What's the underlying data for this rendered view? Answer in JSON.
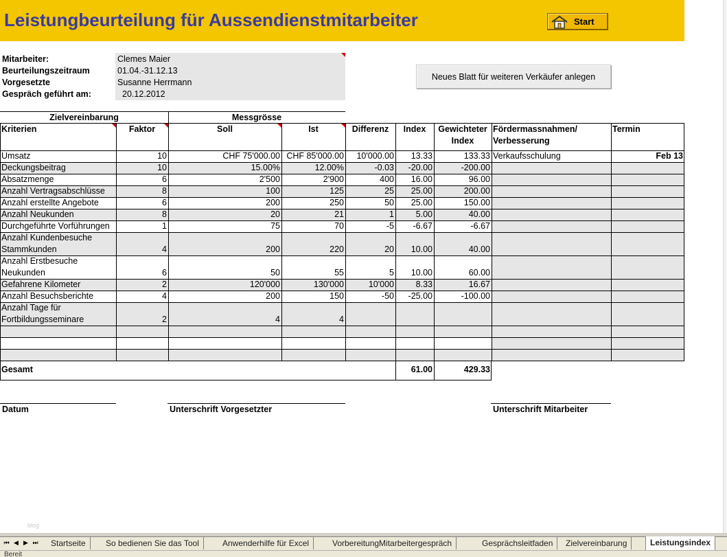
{
  "header": {
    "title": "Leistungbeurteilung für Aussendienstmitarbeiter",
    "start_button": "Start",
    "banner_color": "#f4c600",
    "title_color": "#3b3ba0"
  },
  "info": {
    "employee_label": "Mitarbeiter:",
    "employee_value": "Clemes Maier",
    "period_label": "Beurteilungszeitraum",
    "period_value": "01.04.-31.12.13",
    "supervisor_label": "Vorgesetzte",
    "supervisor_value": "Susanne Herrmann",
    "date_label": "Gespräch geführt am:",
    "date_value": "20.12.2012"
  },
  "new_sheet_button": "Neues Blatt für weiteren Verkäufer anlegen",
  "table": {
    "group_headers": {
      "zielvereinbarung": "Zielvereinbarung",
      "messgroesse": "Messgrösse"
    },
    "headers": {
      "kriterien": "Kriterien",
      "faktor": "Faktor",
      "soll": "Soll",
      "ist": "Ist",
      "differenz": "Differenz",
      "index": "Index",
      "gewichteter_1": "Gewichteter",
      "gewichteter_2": "Index",
      "foerder_1": "Fördermassnahmen/",
      "foerder_2": "Verbesserung",
      "termin": "Termin"
    },
    "rows": [
      {
        "k1": "Umsatz",
        "k2": "",
        "faktor": "10",
        "soll": "CHF 75'000.00",
        "ist": "CHF 85'000.00",
        "diff": "10'000.00",
        "index": "13.33",
        "gew": "133.33",
        "foerder": "Verkaufsschulung",
        "termin": "Feb 13"
      },
      {
        "k1": "Deckungsbeitrag",
        "k2": "",
        "faktor": "10",
        "soll": "15.00%",
        "ist": "12.00%",
        "diff": "-0.03",
        "index": "-20.00",
        "gew": "-200.00",
        "foerder": "",
        "termin": ""
      },
      {
        "k1": "Absatzmenge",
        "k2": "",
        "faktor": "6",
        "soll": "2'500",
        "ist": "2'900",
        "diff": "400",
        "index": "16.00",
        "gew": "96.00",
        "foerder": "",
        "termin": ""
      },
      {
        "k1": "Anzahl Vertragsabschlüsse",
        "k2": "",
        "faktor": "8",
        "soll": "100",
        "ist": "125",
        "diff": "25",
        "index": "25.00",
        "gew": "200.00",
        "foerder": "",
        "termin": ""
      },
      {
        "k1": "Anzahl erstellte Angebote",
        "k2": "",
        "faktor": "6",
        "soll": "200",
        "ist": "250",
        "diff": "50",
        "index": "25.00",
        "gew": "150.00",
        "foerder": "",
        "termin": ""
      },
      {
        "k1": "Anzahl Neukunden",
        "k2": "",
        "faktor": "8",
        "soll": "20",
        "ist": "21",
        "diff": "1",
        "index": "5.00",
        "gew": "40.00",
        "foerder": "",
        "termin": ""
      },
      {
        "k1": "Durchgeführte Vorführungen",
        "k2": "",
        "faktor": "1",
        "soll": "75",
        "ist": "70",
        "diff": "-5",
        "index": "-6.67",
        "gew": "-6.67",
        "foerder": "",
        "termin": ""
      },
      {
        "k1": "Anzahl Kundenbesuche",
        "k2": "Stammkunden",
        "faktor": "4",
        "soll": "200",
        "ist": "220",
        "diff": "20",
        "index": "10.00",
        "gew": "40.00",
        "foerder": "",
        "termin": ""
      },
      {
        "k1": "Anzahl Erstbesuche",
        "k2": "Neukunden",
        "faktor": "6",
        "soll": "50",
        "ist": "55",
        "diff": "5",
        "index": "10.00",
        "gew": "60.00",
        "foerder": "",
        "termin": ""
      },
      {
        "k1": "Gefahrene Kilometer",
        "k2": "",
        "faktor": "2",
        "soll": "120'000",
        "ist": "130'000",
        "diff": "10'000",
        "index": "8.33",
        "gew": "16.67",
        "foerder": "",
        "termin": ""
      },
      {
        "k1": "Anzahl Besuchsberichte",
        "k2": "",
        "faktor": "4",
        "soll": "200",
        "ist": "150",
        "diff": "-50",
        "index": "-25.00",
        "gew": "-100.00",
        "foerder": "",
        "termin": ""
      },
      {
        "k1": "Anzahl Tage für",
        "k2": "Fortbildungsseminare",
        "faktor": "2",
        "soll": "4",
        "ist": "4",
        "diff": "",
        "index": "",
        "gew": "",
        "foerder": "",
        "termin": ""
      },
      {
        "k1": "",
        "k2": "",
        "faktor": "",
        "soll": "",
        "ist": "",
        "diff": "",
        "index": "",
        "gew": "",
        "foerder": "",
        "termin": ""
      },
      {
        "k1": "",
        "k2": "",
        "faktor": "",
        "soll": "",
        "ist": "",
        "diff": "",
        "index": "",
        "gew": "",
        "foerder": "",
        "termin": ""
      },
      {
        "k1": "",
        "k2": "",
        "faktor": "",
        "soll": "",
        "ist": "",
        "diff": "",
        "index": "",
        "gew": "",
        "foerder": "",
        "termin": ""
      }
    ],
    "total_label": "Gesamt",
    "total_index": "61.00",
    "total_gew": "429.33"
  },
  "signatures": {
    "datum": "Datum",
    "vorgesetzter": "Unterschrift Vorgesetzter",
    "mitarbeiter": "Unterschrift Mitarbeiter"
  },
  "sheet_tabs": [
    {
      "label": "Startseite",
      "active": false
    },
    {
      "label": "So bedienen Sie das Tool",
      "active": false
    },
    {
      "label": "Anwenderhilfe für Excel",
      "active": false
    },
    {
      "label": "VorbereitungMitarbeitergespräch",
      "active": false
    },
    {
      "label": "Gesprächsleitfaden",
      "active": false
    },
    {
      "label": "Zielvereinbarung",
      "active": false
    },
    {
      "label": "Leistungsindex",
      "active": true
    }
  ],
  "status": "Bereit",
  "watermark": "blog",
  "icons": {
    "house": "house-icon",
    "nav_first": "nav-first-icon",
    "nav_prev": "nav-prev-icon",
    "nav_next": "nav-next-icon",
    "nav_last": "nav-last-icon"
  }
}
